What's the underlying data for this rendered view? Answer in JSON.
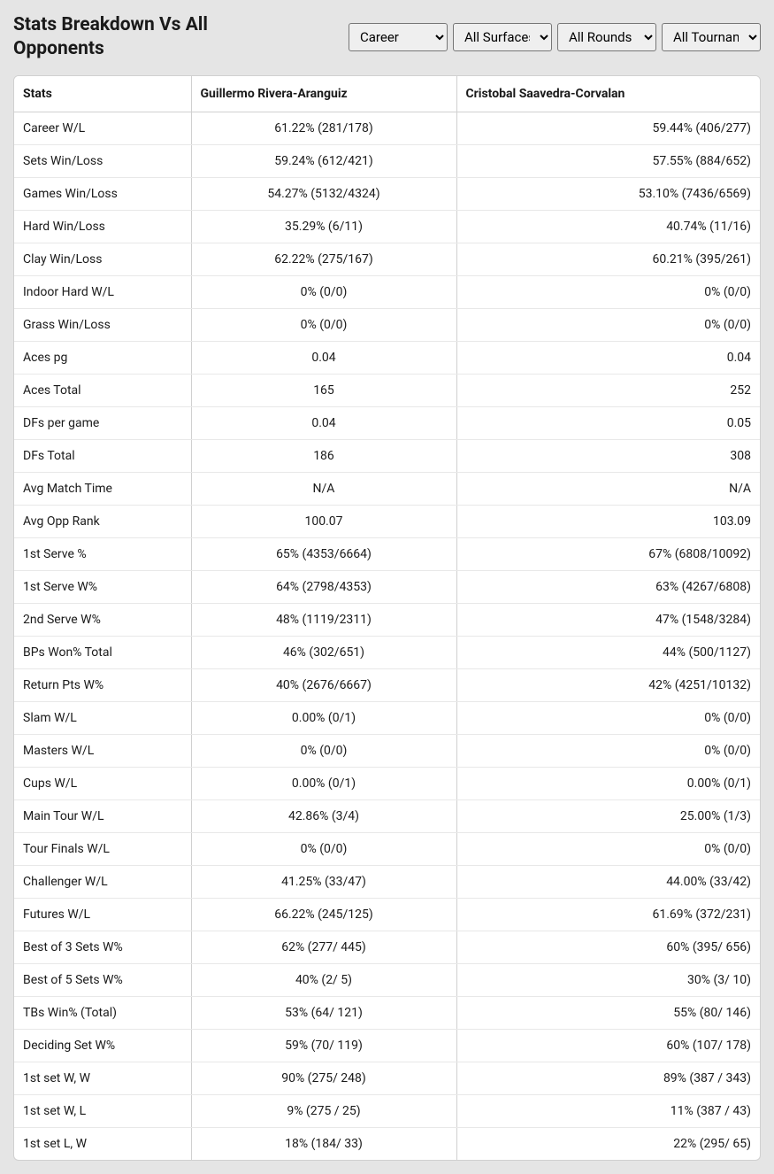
{
  "title": "Stats Breakdown Vs All Opponents",
  "filters": {
    "career": "Career",
    "surface": "All Surfaces",
    "rounds": "All Rounds",
    "tournaments": "All Tournaments"
  },
  "columns": {
    "stat": "Stats",
    "player1": "Guillermo Rivera-Aranguiz",
    "player2": "Cristobal Saavedra-Corvalan"
  },
  "rows": [
    {
      "stat": "Career W/L",
      "p1": "61.22% (281/178)",
      "p2": "59.44% (406/277)"
    },
    {
      "stat": "Sets Win/Loss",
      "p1": "59.24% (612/421)",
      "p2": "57.55% (884/652)"
    },
    {
      "stat": "Games Win/Loss",
      "p1": "54.27% (5132/4324)",
      "p2": "53.10% (7436/6569)"
    },
    {
      "stat": "Hard Win/Loss",
      "p1": "35.29% (6/11)",
      "p2": "40.74% (11/16)"
    },
    {
      "stat": "Clay Win/Loss",
      "p1": "62.22% (275/167)",
      "p2": "60.21% (395/261)"
    },
    {
      "stat": "Indoor Hard W/L",
      "p1": "0% (0/0)",
      "p2": "0% (0/0)"
    },
    {
      "stat": "Grass Win/Loss",
      "p1": "0% (0/0)",
      "p2": "0% (0/0)"
    },
    {
      "stat": "Aces pg",
      "p1": "0.04",
      "p2": "0.04"
    },
    {
      "stat": "Aces Total",
      "p1": "165",
      "p2": "252"
    },
    {
      "stat": "DFs per game",
      "p1": "0.04",
      "p2": "0.05"
    },
    {
      "stat": "DFs Total",
      "p1": "186",
      "p2": "308"
    },
    {
      "stat": "Avg Match Time",
      "p1": "N/A",
      "p2": "N/A"
    },
    {
      "stat": "Avg Opp Rank",
      "p1": "100.07",
      "p2": "103.09"
    },
    {
      "stat": "1st Serve %",
      "p1": "65% (4353/6664)",
      "p2": "67% (6808/10092)"
    },
    {
      "stat": "1st Serve W%",
      "p1": "64% (2798/4353)",
      "p2": "63% (4267/6808)"
    },
    {
      "stat": "2nd Serve W%",
      "p1": "48% (1119/2311)",
      "p2": "47% (1548/3284)"
    },
    {
      "stat": "BPs Won% Total",
      "p1": "46% (302/651)",
      "p2": "44% (500/1127)"
    },
    {
      "stat": "Return Pts W%",
      "p1": "40% (2676/6667)",
      "p2": "42% (4251/10132)"
    },
    {
      "stat": "Slam W/L",
      "p1": "0.00% (0/1)",
      "p2": "0% (0/0)"
    },
    {
      "stat": "Masters W/L",
      "p1": "0% (0/0)",
      "p2": "0% (0/0)"
    },
    {
      "stat": "Cups W/L",
      "p1": "0.00% (0/1)",
      "p2": "0.00% (0/1)"
    },
    {
      "stat": "Main Tour W/L",
      "p1": "42.86% (3/4)",
      "p2": "25.00% (1/3)"
    },
    {
      "stat": "Tour Finals W/L",
      "p1": "0% (0/0)",
      "p2": "0% (0/0)"
    },
    {
      "stat": "Challenger W/L",
      "p1": "41.25% (33/47)",
      "p2": "44.00% (33/42)"
    },
    {
      "stat": "Futures W/L",
      "p1": "66.22% (245/125)",
      "p2": "61.69% (372/231)"
    },
    {
      "stat": "Best of 3 Sets W%",
      "p1": "62% (277/ 445)",
      "p2": "60% (395/ 656)"
    },
    {
      "stat": "Best of 5 Sets W%",
      "p1": "40% (2/ 5)",
      "p2": "30% (3/ 10)"
    },
    {
      "stat": "TBs Win% (Total)",
      "p1": "53% (64/ 121)",
      "p2": "55% (80/ 146)"
    },
    {
      "stat": "Deciding Set W%",
      "p1": "59% (70/ 119)",
      "p2": "60% (107/ 178)"
    },
    {
      "stat": "1st set W, W",
      "p1": "90% (275/ 248)",
      "p2": "89% (387 / 343)"
    },
    {
      "stat": "1st set W, L",
      "p1": "9% (275 / 25)",
      "p2": "11% (387 / 43)"
    },
    {
      "stat": "1st set L, W",
      "p1": "18% (184/ 33)",
      "p2": "22% (295/ 65)"
    }
  ]
}
